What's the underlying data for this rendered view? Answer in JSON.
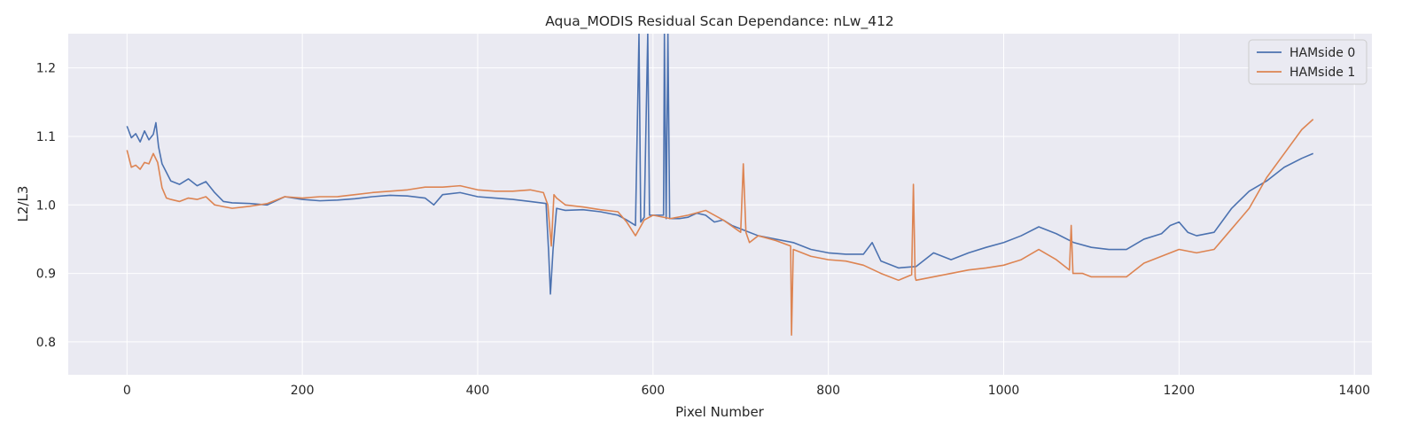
{
  "chart_data": {
    "type": "line",
    "title": "Aqua_MODIS Residual Scan Dependance: nLw_412",
    "xlabel": "Pixel Number",
    "ylabel": "L2/L3",
    "xlim": [
      -67,
      1420
    ],
    "ylim": [
      0.752,
      1.25
    ],
    "xticks": [
      0,
      200,
      400,
      600,
      800,
      1000,
      1200,
      1400
    ],
    "yticks": [
      0.8,
      0.9,
      1.0,
      1.1,
      1.2
    ],
    "ytick_labels": [
      "0.8",
      "0.9",
      "1.0",
      "1.1",
      "1.2"
    ],
    "grid": true,
    "legend_position": "top-right",
    "series": [
      {
        "name": "HAMside 0",
        "color": "#4c72b0",
        "points": [
          [
            0,
            1.115
          ],
          [
            5,
            1.098
          ],
          [
            10,
            1.104
          ],
          [
            15,
            1.092
          ],
          [
            20,
            1.108
          ],
          [
            25,
            1.095
          ],
          [
            30,
            1.103
          ],
          [
            33,
            1.12
          ],
          [
            36,
            1.085
          ],
          [
            40,
            1.06
          ],
          [
            50,
            1.035
          ],
          [
            60,
            1.03
          ],
          [
            70,
            1.038
          ],
          [
            80,
            1.028
          ],
          [
            90,
            1.034
          ],
          [
            100,
            1.018
          ],
          [
            110,
            1.005
          ],
          [
            120,
            1.003
          ],
          [
            140,
            1.002
          ],
          [
            160,
            1.0
          ],
          [
            180,
            1.012
          ],
          [
            200,
            1.008
          ],
          [
            220,
            1.006
          ],
          [
            240,
            1.007
          ],
          [
            260,
            1.009
          ],
          [
            280,
            1.012
          ],
          [
            300,
            1.014
          ],
          [
            320,
            1.013
          ],
          [
            340,
            1.01
          ],
          [
            350,
            1.0
          ],
          [
            360,
            1.015
          ],
          [
            380,
            1.018
          ],
          [
            400,
            1.012
          ],
          [
            420,
            1.01
          ],
          [
            440,
            1.008
          ],
          [
            460,
            1.005
          ],
          [
            478,
            1.002
          ],
          [
            481,
            0.93
          ],
          [
            483,
            0.87
          ],
          [
            486,
            0.935
          ],
          [
            490,
            0.995
          ],
          [
            500,
            0.992
          ],
          [
            520,
            0.993
          ],
          [
            540,
            0.99
          ],
          [
            560,
            0.985
          ],
          [
            570,
            0.978
          ],
          [
            580,
            0.97
          ],
          [
            584,
            1.25
          ],
          [
            586,
            0.975
          ],
          [
            590,
            0.982
          ],
          [
            594,
            1.25
          ],
          [
            596,
            0.985
          ],
          [
            600,
            0.985
          ],
          [
            612,
            0.985
          ],
          [
            613,
            1.25
          ],
          [
            615,
            0.98
          ],
          [
            617,
            1.25
          ],
          [
            619,
            0.98
          ],
          [
            630,
            0.98
          ],
          [
            640,
            0.982
          ],
          [
            650,
            0.988
          ],
          [
            660,
            0.985
          ],
          [
            670,
            0.975
          ],
          [
            680,
            0.978
          ],
          [
            690,
            0.97
          ],
          [
            700,
            0.965
          ],
          [
            720,
            0.955
          ],
          [
            740,
            0.95
          ],
          [
            760,
            0.945
          ],
          [
            780,
            0.935
          ],
          [
            800,
            0.93
          ],
          [
            820,
            0.928
          ],
          [
            840,
            0.928
          ],
          [
            850,
            0.945
          ],
          [
            860,
            0.918
          ],
          [
            880,
            0.908
          ],
          [
            900,
            0.91
          ],
          [
            920,
            0.93
          ],
          [
            940,
            0.92
          ],
          [
            960,
            0.93
          ],
          [
            980,
            0.938
          ],
          [
            1000,
            0.945
          ],
          [
            1020,
            0.955
          ],
          [
            1040,
            0.968
          ],
          [
            1060,
            0.958
          ],
          [
            1080,
            0.945
          ],
          [
            1100,
            0.938
          ],
          [
            1120,
            0.935
          ],
          [
            1140,
            0.935
          ],
          [
            1160,
            0.95
          ],
          [
            1180,
            0.958
          ],
          [
            1190,
            0.97
          ],
          [
            1200,
            0.975
          ],
          [
            1210,
            0.96
          ],
          [
            1220,
            0.955
          ],
          [
            1240,
            0.96
          ],
          [
            1260,
            0.995
          ],
          [
            1280,
            1.02
          ],
          [
            1300,
            1.035
          ],
          [
            1320,
            1.055
          ],
          [
            1340,
            1.068
          ],
          [
            1353,
            1.075
          ]
        ]
      },
      {
        "name": "HAMside 1",
        "color": "#dd8452",
        "points": [
          [
            0,
            1.08
          ],
          [
            5,
            1.055
          ],
          [
            10,
            1.058
          ],
          [
            15,
            1.052
          ],
          [
            20,
            1.062
          ],
          [
            25,
            1.06
          ],
          [
            30,
            1.075
          ],
          [
            35,
            1.062
          ],
          [
            40,
            1.025
          ],
          [
            45,
            1.01
          ],
          [
            50,
            1.008
          ],
          [
            60,
            1.005
          ],
          [
            70,
            1.01
          ],
          [
            80,
            1.008
          ],
          [
            90,
            1.012
          ],
          [
            100,
            1.0
          ],
          [
            120,
            0.995
          ],
          [
            140,
            0.998
          ],
          [
            160,
            1.002
          ],
          [
            180,
            1.012
          ],
          [
            200,
            1.01
          ],
          [
            220,
            1.012
          ],
          [
            240,
            1.012
          ],
          [
            260,
            1.015
          ],
          [
            280,
            1.018
          ],
          [
            300,
            1.02
          ],
          [
            320,
            1.022
          ],
          [
            340,
            1.026
          ],
          [
            360,
            1.026
          ],
          [
            380,
            1.028
          ],
          [
            400,
            1.022
          ],
          [
            420,
            1.02
          ],
          [
            440,
            1.02
          ],
          [
            460,
            1.022
          ],
          [
            475,
            1.018
          ],
          [
            480,
            1.0
          ],
          [
            484,
            0.94
          ],
          [
            487,
            1.015
          ],
          [
            490,
            1.01
          ],
          [
            500,
            1.0
          ],
          [
            520,
            0.997
          ],
          [
            540,
            0.993
          ],
          [
            560,
            0.99
          ],
          [
            570,
            0.975
          ],
          [
            580,
            0.955
          ],
          [
            590,
            0.978
          ],
          [
            600,
            0.985
          ],
          [
            620,
            0.98
          ],
          [
            640,
            0.985
          ],
          [
            660,
            0.992
          ],
          [
            680,
            0.978
          ],
          [
            700,
            0.96
          ],
          [
            703,
            1.06
          ],
          [
            706,
            0.96
          ],
          [
            710,
            0.945
          ],
          [
            720,
            0.955
          ],
          [
            740,
            0.948
          ],
          [
            757,
            0.94
          ],
          [
            758,
            0.81
          ],
          [
            760,
            0.935
          ],
          [
            780,
            0.925
          ],
          [
            800,
            0.92
          ],
          [
            820,
            0.918
          ],
          [
            840,
            0.912
          ],
          [
            860,
            0.9
          ],
          [
            880,
            0.89
          ],
          [
            895,
            0.898
          ],
          [
            897,
            1.03
          ],
          [
            899,
            0.895
          ],
          [
            900,
            0.89
          ],
          [
            920,
            0.895
          ],
          [
            940,
            0.9
          ],
          [
            960,
            0.905
          ],
          [
            980,
            0.908
          ],
          [
            1000,
            0.912
          ],
          [
            1020,
            0.92
          ],
          [
            1040,
            0.935
          ],
          [
            1060,
            0.92
          ],
          [
            1075,
            0.905
          ],
          [
            1077,
            0.97
          ],
          [
            1079,
            0.9
          ],
          [
            1090,
            0.9
          ],
          [
            1100,
            0.895
          ],
          [
            1120,
            0.895
          ],
          [
            1140,
            0.895
          ],
          [
            1160,
            0.915
          ],
          [
            1180,
            0.925
          ],
          [
            1200,
            0.935
          ],
          [
            1220,
            0.93
          ],
          [
            1240,
            0.935
          ],
          [
            1260,
            0.965
          ],
          [
            1280,
            0.995
          ],
          [
            1300,
            1.04
          ],
          [
            1320,
            1.075
          ],
          [
            1340,
            1.11
          ],
          [
            1353,
            1.125
          ]
        ]
      }
    ]
  }
}
